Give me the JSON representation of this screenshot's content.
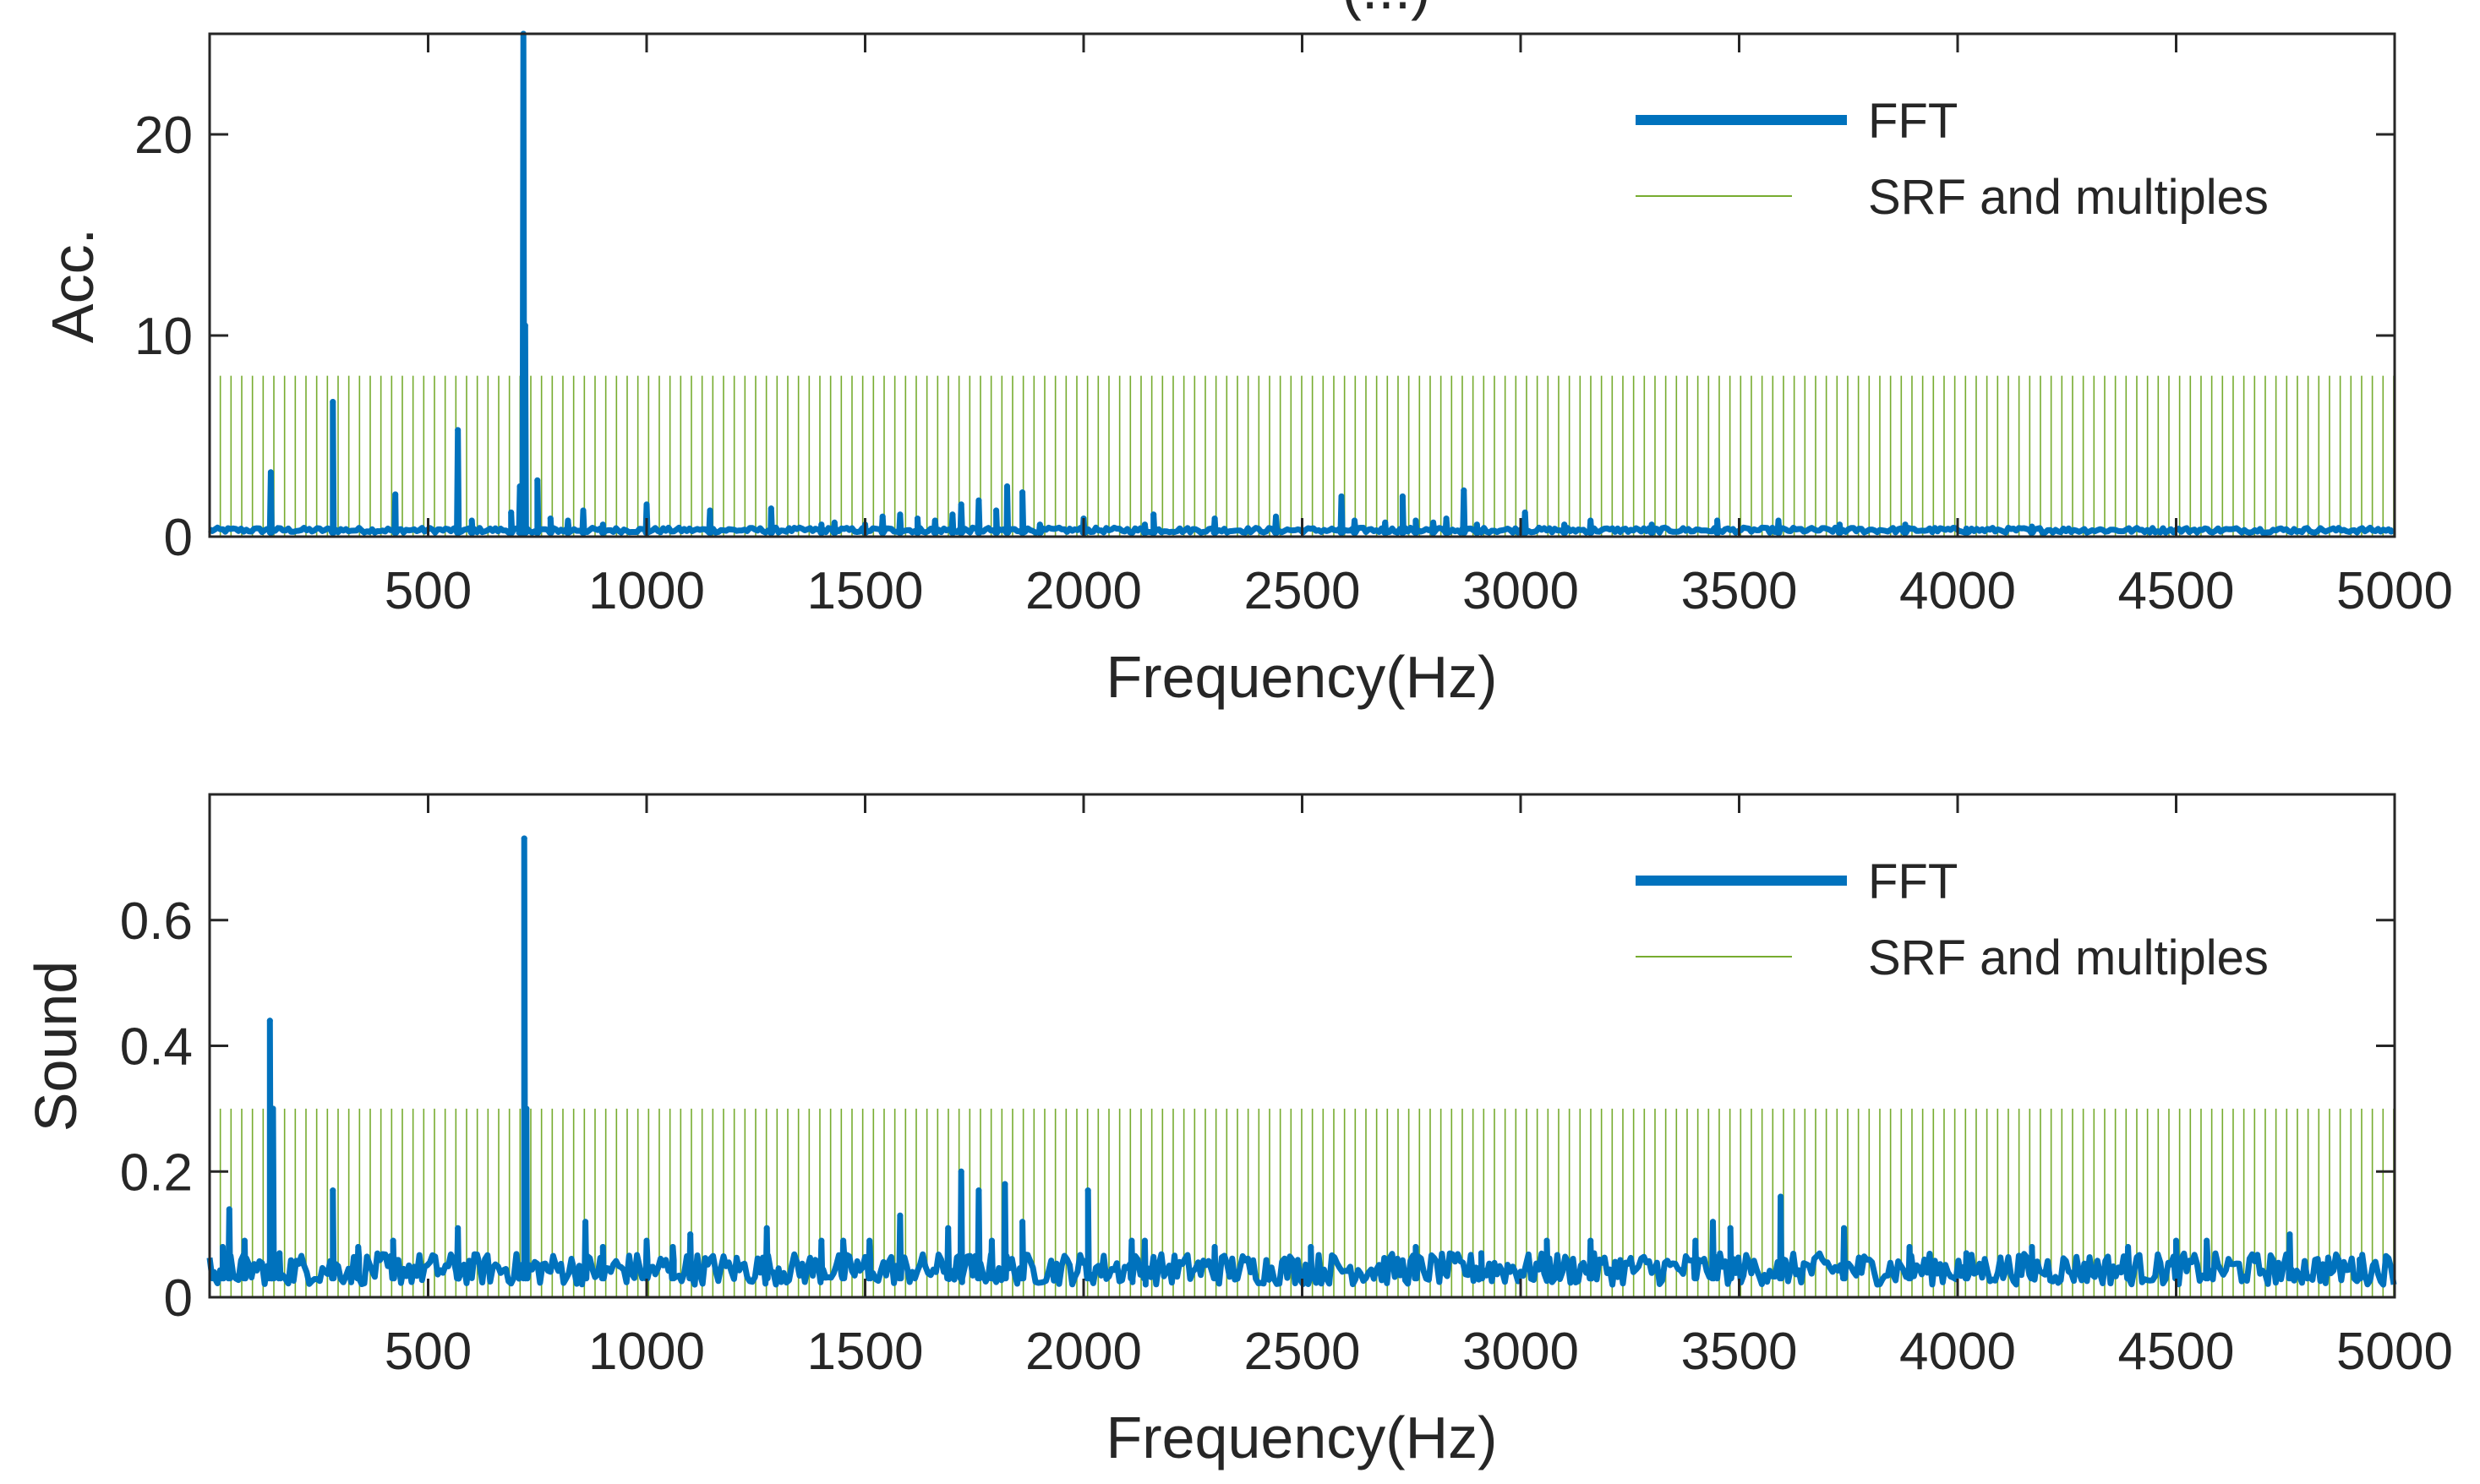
{
  "figure": {
    "clipped_title_fragment": "(...)"
  },
  "colors": {
    "fft": "#0072BD",
    "srf": "#77AC30",
    "axis": "#262626"
  },
  "chart_data": [
    {
      "type": "line",
      "panel": "top",
      "xlabel": "Frequency(Hz)",
      "ylabel": "Acc.",
      "xlim": [
        0,
        5000
      ],
      "ylim": [
        0,
        25
      ],
      "xticks": [
        500,
        1000,
        1500,
        2000,
        2500,
        3000,
        3500,
        4000,
        4500,
        5000
      ],
      "yticks": [
        0,
        10,
        20
      ],
      "srf_base_hz": 24.5,
      "srf_level": 8,
      "fft_baseline": 0.2,
      "peaks": [
        {
          "x": 140,
          "y": 3.2
        },
        {
          "x": 282,
          "y": 6.7
        },
        {
          "x": 425,
          "y": 2.1
        },
        {
          "x": 568,
          "y": 5.3
        },
        {
          "x": 600,
          "y": 0.8
        },
        {
          "x": 690,
          "y": 1.2
        },
        {
          "x": 710,
          "y": 2.5
        },
        {
          "x": 718,
          "y": 25.0
        },
        {
          "x": 722,
          "y": 10.5
        },
        {
          "x": 750,
          "y": 2.8
        },
        {
          "x": 780,
          "y": 0.9
        },
        {
          "x": 820,
          "y": 0.8
        },
        {
          "x": 855,
          "y": 1.3
        },
        {
          "x": 900,
          "y": 0.6
        },
        {
          "x": 1000,
          "y": 1.6
        },
        {
          "x": 1145,
          "y": 1.3
        },
        {
          "x": 1285,
          "y": 1.4
        },
        {
          "x": 1400,
          "y": 0.6
        },
        {
          "x": 1430,
          "y": 0.7
        },
        {
          "x": 1500,
          "y": 0.6
        },
        {
          "x": 1540,
          "y": 1.0
        },
        {
          "x": 1580,
          "y": 1.1
        },
        {
          "x": 1620,
          "y": 0.9
        },
        {
          "x": 1660,
          "y": 0.8
        },
        {
          "x": 1700,
          "y": 1.1
        },
        {
          "x": 1720,
          "y": 1.6
        },
        {
          "x": 1760,
          "y": 1.8
        },
        {
          "x": 1800,
          "y": 1.3
        },
        {
          "x": 1825,
          "y": 2.5
        },
        {
          "x": 1860,
          "y": 2.2
        },
        {
          "x": 1900,
          "y": 0.6
        },
        {
          "x": 2000,
          "y": 0.9
        },
        {
          "x": 2140,
          "y": 0.6
        },
        {
          "x": 2160,
          "y": 1.1
        },
        {
          "x": 2300,
          "y": 0.9
        },
        {
          "x": 2440,
          "y": 1.0
        },
        {
          "x": 2590,
          "y": 2.0
        },
        {
          "x": 2620,
          "y": 0.8
        },
        {
          "x": 2690,
          "y": 0.7
        },
        {
          "x": 2730,
          "y": 2.0
        },
        {
          "x": 2760,
          "y": 0.8
        },
        {
          "x": 2800,
          "y": 0.7
        },
        {
          "x": 2830,
          "y": 0.9
        },
        {
          "x": 2870,
          "y": 2.3
        },
        {
          "x": 2900,
          "y": 0.6
        },
        {
          "x": 3010,
          "y": 1.2
        },
        {
          "x": 3100,
          "y": 0.6
        },
        {
          "x": 3160,
          "y": 0.8
        },
        {
          "x": 3300,
          "y": 0.6
        },
        {
          "x": 3450,
          "y": 0.8
        },
        {
          "x": 3590,
          "y": 0.8
        },
        {
          "x": 3730,
          "y": 0.6
        },
        {
          "x": 3880,
          "y": 0.6
        },
        {
          "x": 4020,
          "y": 0.4
        },
        {
          "x": 4170,
          "y": 0.5
        }
      ],
      "legend": [
        "FFT",
        "SRF and multiples"
      ],
      "legend_location": "top-right"
    },
    {
      "type": "line",
      "panel": "bottom",
      "xlabel": "Frequency(Hz)",
      "ylabel": "Sound",
      "xlim": [
        0,
        5000
      ],
      "ylim": [
        0,
        0.8
      ],
      "xticks": [
        500,
        1000,
        1500,
        2000,
        2500,
        3000,
        3500,
        4000,
        4500,
        5000
      ],
      "yticks": [
        0,
        0.2,
        0.4,
        0.6
      ],
      "ytick_labels": [
        "0",
        "0.2",
        "0.4",
        "0.6"
      ],
      "srf_base_hz": 24.5,
      "srf_level": 0.3,
      "fft_noise_band": [
        0.02,
        0.07
      ],
      "peaks": [
        {
          "x": 10,
          "y": 0.04
        },
        {
          "x": 30,
          "y": 0.08
        },
        {
          "x": 45,
          "y": 0.14
        },
        {
          "x": 80,
          "y": 0.09
        },
        {
          "x": 138,
          "y": 0.44
        },
        {
          "x": 145,
          "y": 0.3
        },
        {
          "x": 160,
          "y": 0.07
        },
        {
          "x": 282,
          "y": 0.17
        },
        {
          "x": 340,
          "y": 0.08
        },
        {
          "x": 420,
          "y": 0.09
        },
        {
          "x": 568,
          "y": 0.11
        },
        {
          "x": 720,
          "y": 0.73
        },
        {
          "x": 725,
          "y": 0.3
        },
        {
          "x": 860,
          "y": 0.12
        },
        {
          "x": 900,
          "y": 0.08
        },
        {
          "x": 1000,
          "y": 0.09
        },
        {
          "x": 1060,
          "y": 0.08
        },
        {
          "x": 1100,
          "y": 0.1
        },
        {
          "x": 1275,
          "y": 0.11
        },
        {
          "x": 1400,
          "y": 0.09
        },
        {
          "x": 1450,
          "y": 0.09
        },
        {
          "x": 1510,
          "y": 0.09
        },
        {
          "x": 1580,
          "y": 0.13
        },
        {
          "x": 1690,
          "y": 0.11
        },
        {
          "x": 1720,
          "y": 0.2
        },
        {
          "x": 1760,
          "y": 0.17
        },
        {
          "x": 1790,
          "y": 0.09
        },
        {
          "x": 1820,
          "y": 0.18
        },
        {
          "x": 1860,
          "y": 0.12
        },
        {
          "x": 2010,
          "y": 0.17
        },
        {
          "x": 2110,
          "y": 0.09
        },
        {
          "x": 2140,
          "y": 0.09
        },
        {
          "x": 2300,
          "y": 0.08
        },
        {
          "x": 2520,
          "y": 0.08
        },
        {
          "x": 2760,
          "y": 0.08
        },
        {
          "x": 2910,
          "y": 0.07
        },
        {
          "x": 3060,
          "y": 0.09
        },
        {
          "x": 3160,
          "y": 0.09
        },
        {
          "x": 3400,
          "y": 0.09
        },
        {
          "x": 3440,
          "y": 0.12
        },
        {
          "x": 3480,
          "y": 0.11
        },
        {
          "x": 3595,
          "y": 0.16
        },
        {
          "x": 3740,
          "y": 0.11
        },
        {
          "x": 3890,
          "y": 0.08
        },
        {
          "x": 4020,
          "y": 0.07
        },
        {
          "x": 4170,
          "y": 0.08
        },
        {
          "x": 4390,
          "y": 0.08
        },
        {
          "x": 4500,
          "y": 0.09
        },
        {
          "x": 4570,
          "y": 0.09
        },
        {
          "x": 4760,
          "y": 0.1
        },
        {
          "x": 4920,
          "y": 0.06
        }
      ],
      "legend": [
        "FFT",
        "SRF and multiples"
      ],
      "legend_location": "top-right"
    }
  ]
}
